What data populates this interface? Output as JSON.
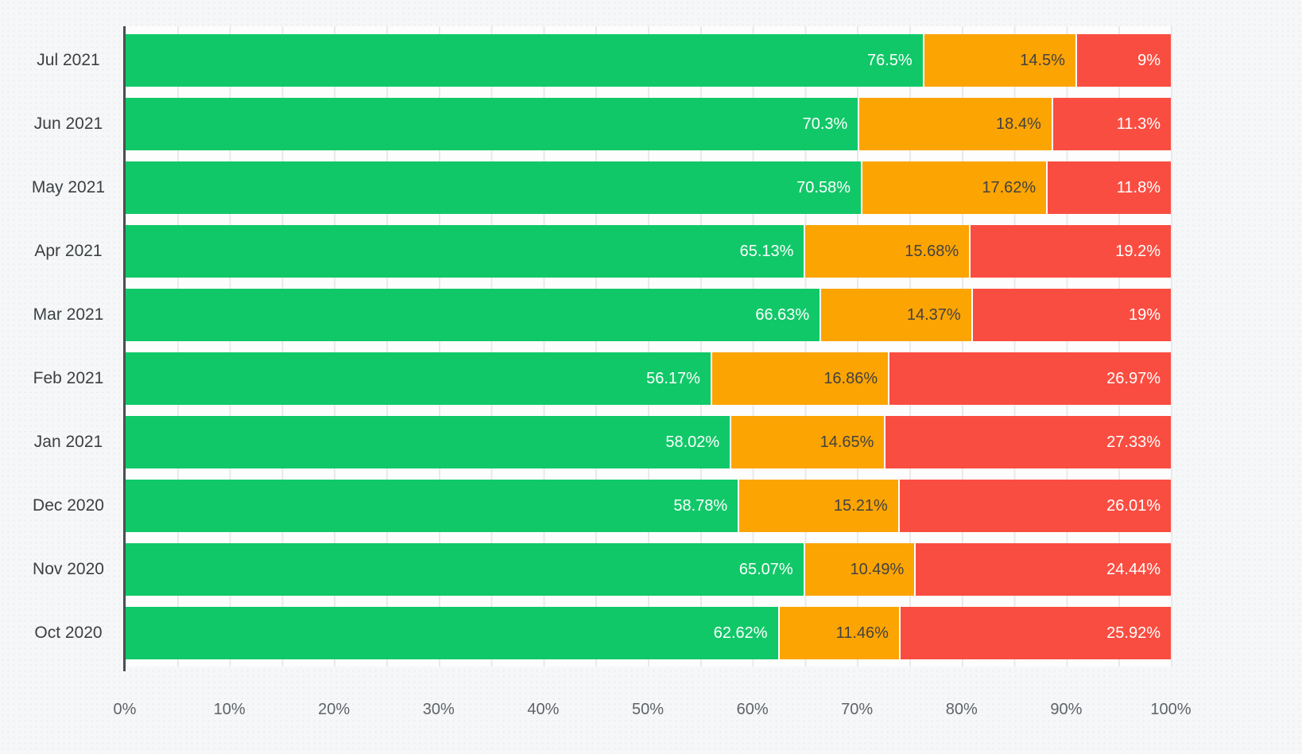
{
  "page": {
    "background": "#f6f7f8",
    "plot_background": "#fdfdfd",
    "gridline_color": "#e9e9e9",
    "axis_line_color": "#4b4f54"
  },
  "chart_data": {
    "type": "bar",
    "orientation": "horizontal",
    "stacked": true,
    "title": "",
    "legend": "none",
    "grid": "vertical, every 5%",
    "categories": [
      "Jul 2021",
      "Jun 2021",
      "May 2021",
      "Apr 2021",
      "Mar 2021",
      "Feb 2021",
      "Jan 2021",
      "Dec 2020",
      "Nov 2020",
      "Oct 2020"
    ],
    "series": [
      {
        "name": "green",
        "color": "#11c868",
        "label_color": "#ffffff",
        "values": [
          76.5,
          70.3,
          70.58,
          65.13,
          66.63,
          56.17,
          58.02,
          58.78,
          65.07,
          62.62
        ],
        "labels": [
          "76.5%",
          "70.3%",
          "70.58%",
          "65.13%",
          "66.63%",
          "56.17%",
          "58.02%",
          "58.78%",
          "65.07%",
          "62.62%"
        ]
      },
      {
        "name": "orange",
        "color": "#fca402",
        "label_color": "#424242",
        "values": [
          14.5,
          18.4,
          17.62,
          15.68,
          14.37,
          16.86,
          14.65,
          15.21,
          10.49,
          11.46
        ],
        "labels": [
          "14.5%",
          "18.4%",
          "17.62%",
          "15.68%",
          "14.37%",
          "16.86%",
          "14.65%",
          "15.21%",
          "10.49%",
          "11.46%"
        ]
      },
      {
        "name": "red",
        "color": "#fa4d41",
        "label_color": "#ffffff",
        "values": [
          9,
          11.3,
          11.8,
          19.2,
          19,
          26.97,
          27.33,
          26.01,
          24.44,
          25.92
        ],
        "labels": [
          "9%",
          "11.3%",
          "11.8%",
          "19.2%",
          "19%",
          "26.97%",
          "27.33%",
          "26.01%",
          "24.44%",
          "25.92%"
        ]
      }
    ],
    "x_axis": {
      "min": 0,
      "max": 100,
      "tick_labels": [
        "0%",
        "10%",
        "20%",
        "30%",
        "40%",
        "50%",
        "60%",
        "70%",
        "80%",
        "90%",
        "100%"
      ],
      "minor_grid_step_percent": 5
    }
  }
}
